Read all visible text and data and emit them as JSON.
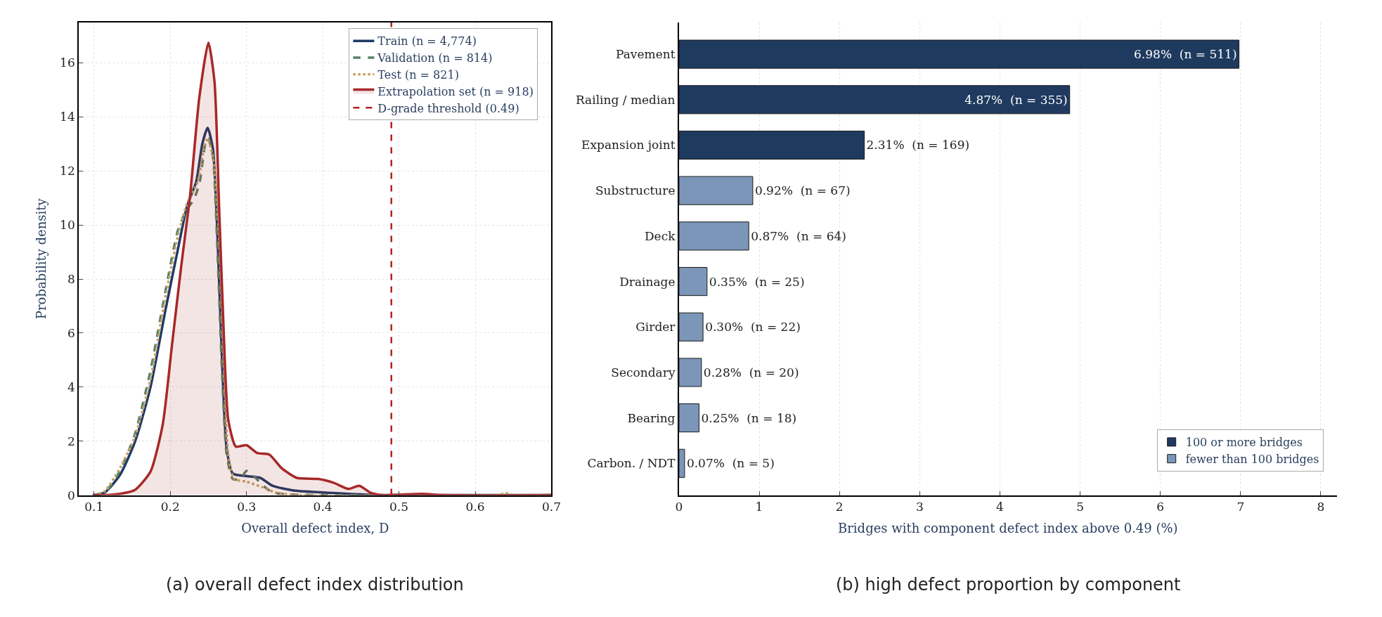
{
  "chart_data": [
    {
      "type": "line",
      "xlabel": "Overall defect index, D",
      "ylabel": "Probability density",
      "xlim": [
        0.08,
        0.7
      ],
      "ylim": [
        0,
        17.5
      ],
      "xticks": [
        0.1,
        0.2,
        0.3,
        0.4,
        0.5,
        0.6,
        0.7
      ],
      "yticks": [
        0,
        2,
        4,
        6,
        8,
        10,
        12,
        14,
        16
      ],
      "grid": true,
      "legend": "top right",
      "annotations": [
        "(a) overall defect index distribution"
      ],
      "ref_lines": [
        {
          "axis": "x",
          "value": 0.49,
          "label": "D-grade threshold (0.49)",
          "color": "#b22222",
          "line_style": "dashed"
        }
      ],
      "series": [
        {
          "name": "Train (n = 4,774)",
          "color": "#1f3a68",
          "line_style": "solid",
          "x": [
            0.098,
            0.114,
            0.134,
            0.154,
            0.174,
            0.194,
            0.21,
            0.222,
            0.234,
            0.242,
            0.249,
            0.256,
            0.262,
            0.268,
            0.274,
            0.282,
            0.302,
            0.318,
            0.334,
            0.362,
            0.414,
            0.454,
            0.474,
            0.7
          ],
          "values": [
            0,
            0.1,
            0.75,
            2.0,
            4.0,
            6.9,
            9.1,
            10.7,
            11.6,
            13.0,
            13.6,
            12.8,
            9.5,
            4.9,
            1.7,
            0.8,
            0.7,
            0.64,
            0.35,
            0.17,
            0.08,
            0.02,
            0,
            0
          ]
        },
        {
          "name": "Validation (n = 814)",
          "color": "#5a8068",
          "line_style": "dashed",
          "x": [
            0.1,
            0.114,
            0.134,
            0.154,
            0.174,
            0.194,
            0.21,
            0.222,
            0.23,
            0.238,
            0.246,
            0.25,
            0.256,
            0.262,
            0.268,
            0.274,
            0.282,
            0.292,
            0.3,
            0.31,
            0.32,
            0.334,
            0.36,
            0.4,
            0.7
          ],
          "values": [
            0,
            0.1,
            0.9,
            2.3,
            4.6,
            7.6,
            9.8,
            10.6,
            10.9,
            11.5,
            13.0,
            13.2,
            12.5,
            9.0,
            4.5,
            1.5,
            0.6,
            0.6,
            0.9,
            0.7,
            0.4,
            0.1,
            0.02,
            0,
            0
          ]
        },
        {
          "name": "Test (n = 821)",
          "color": "#c8a263",
          "line_style": "dotted",
          "x": [
            0.1,
            0.114,
            0.134,
            0.154,
            0.174,
            0.194,
            0.21,
            0.222,
            0.236,
            0.244,
            0.249,
            0.256,
            0.264,
            0.27,
            0.276,
            0.284,
            0.3,
            0.32,
            0.34,
            0.37,
            0.63,
            0.64,
            0.65,
            0.7
          ],
          "values": [
            0,
            0.15,
            1.0,
            2.2,
            4.3,
            7.4,
            9.6,
            10.8,
            11.6,
            12.8,
            13.2,
            12.5,
            9.5,
            5.0,
            1.5,
            0.6,
            0.5,
            0.3,
            0.08,
            0,
            0,
            0.08,
            0,
            0
          ]
        },
        {
          "name": "Extrapolation set (n = 918)",
          "type": "area",
          "color": "#a82828",
          "line_style": "solid",
          "x": [
            0.1,
            0.114,
            0.134,
            0.154,
            0.174,
            0.19,
            0.202,
            0.214,
            0.226,
            0.238,
            0.25,
            0.258,
            0.264,
            0.27,
            0.276,
            0.286,
            0.3,
            0.314,
            0.33,
            0.346,
            0.366,
            0.394,
            0.414,
            0.434,
            0.448,
            0.462,
            0.48,
            0.53,
            0.56,
            0.7
          ],
          "values": [
            0,
            0,
            0.05,
            0.2,
            0.87,
            2.6,
            5.5,
            8.4,
            11.1,
            14.7,
            16.75,
            15.3,
            10.7,
            6.1,
            2.8,
            1.8,
            1.85,
            1.56,
            1.5,
            1.0,
            0.64,
            0.6,
            0.46,
            0.23,
            0.35,
            0.1,
            0,
            0.05,
            0,
            0
          ]
        }
      ]
    },
    {
      "type": "bar",
      "orientation": "horizontal",
      "stacked": true,
      "xlabel": "Bridges with component defect index above 0.49 (%)",
      "xlim": [
        0,
        8.2
      ],
      "xticks": [
        0,
        1,
        2,
        3,
        4,
        5,
        6,
        7,
        8
      ],
      "grid": "x",
      "legend": "bottom right",
      "annotations": [
        "(b) high defect proportion by component"
      ],
      "categories": [
        "Pavement",
        "Railing / median",
        "Expansion joint",
        "Substructure",
        "Deck",
        "Drainage",
        "Girder",
        "Secondary",
        "Bearing",
        "Carbon. / NDT"
      ],
      "series": [
        {
          "name": "100 or more bridges",
          "color": "#1f3a5f",
          "values": [
            6.98,
            4.87,
            2.31,
            null,
            null,
            null,
            null,
            null,
            null,
            null
          ],
          "value_labels": [
            "6.98%  (n = 511)",
            "4.87%  (n = 355)",
            "2.31%  (n = 169)",
            null,
            null,
            null,
            null,
            null,
            null,
            null
          ]
        },
        {
          "name": "fewer than 100 bridges",
          "color": "#7b96b8",
          "values": [
            null,
            null,
            null,
            0.92,
            0.87,
            0.35,
            0.3,
            0.28,
            0.25,
            0.07
          ],
          "value_labels": [
            null,
            null,
            null,
            "0.92%  (n = 67)",
            "0.87%  (n = 64)",
            "0.35%  (n = 25)",
            "0.30%  (n = 22)",
            "0.28%  (n = 20)",
            "0.25%  (n = 18)",
            "0.07%  (n = 5)"
          ]
        }
      ]
    }
  ]
}
